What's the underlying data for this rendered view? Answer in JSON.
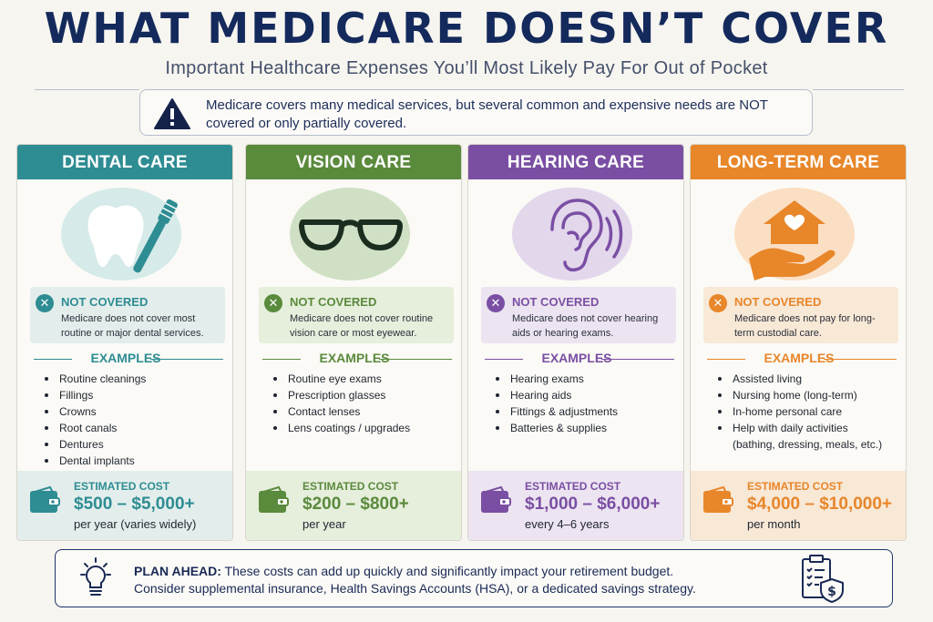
{
  "title": "WHAT MEDICARE DOESN’T COVER",
  "subtitle": "Important Healthcare Expenses You’ll Most Likely Pay For Out of Pocket",
  "callout": {
    "icon": "warning-triangle-icon",
    "text": "Medicare covers many medical services, but several common and expensive needs are NOT covered or only partially covered."
  },
  "cards": [
    {
      "title": "DENTAL CARE",
      "color": "#2e8c93",
      "tint": "#e3eeec",
      "icon": "tooth-toothbrush-icon",
      "status": "NOT COVERED",
      "description": "Medicare does not cover most routine or major dental services.",
      "examples_label": "EXAMPLES",
      "examples": [
        "Routine cleanings",
        "Fillings",
        "Crowns",
        "Root canals",
        "Dentures",
        "Dental implants"
      ],
      "cost_label": "ESTIMATED COST",
      "cost_amount": "$500 – $5,000+",
      "cost_period": "per year (varies widely)"
    },
    {
      "title": "VISION CARE",
      "color": "#5a8a3c",
      "tint": "#e6eedc",
      "icon": "eyeglasses-icon",
      "status": "NOT COVERED",
      "description": "Medicare does not cover routine vision care or most eyewear.",
      "examples_label": "EXAMPLES",
      "examples": [
        "Routine eye exams",
        "Prescription glasses",
        "Contact lenses",
        "Lens coatings / upgrades"
      ],
      "cost_label": "ESTIMATED COST",
      "cost_amount": "$200 – $800+",
      "cost_period": "per year"
    },
    {
      "title": "HEARING CARE",
      "color": "#7a4fa3",
      "tint": "#ece4f1",
      "icon": "ear-sound-icon",
      "status": "NOT COVERED",
      "description": "Medicare does not cover hearing aids or hearing exams.",
      "examples_label": "EXAMPLES",
      "examples": [
        "Hearing exams",
        "Hearing aids",
        "Fittings & adjustments",
        "Batteries & supplies"
      ],
      "cost_label": "ESTIMATED COST",
      "cost_amount": "$1,000 – $6,000+",
      "cost_period": "every 4–6 years"
    },
    {
      "title": "LONG-TERM CARE",
      "color": "#e8862a",
      "tint": "#f8e8d6",
      "icon": "house-hand-heart-icon",
      "status": "NOT COVERED",
      "description": "Medicare does not pay for long-term custodial care.",
      "examples_label": "EXAMPLES",
      "examples": [
        "Assisted living",
        "Nursing home (long-term)",
        "In-home personal care",
        "Help with daily activities (bathing, dressing, meals, etc.)"
      ],
      "cost_label": "ESTIMATED COST",
      "cost_amount": "$4,000 – $10,000+",
      "cost_period": "per month"
    }
  ],
  "plan": {
    "icon": "lightbulb-icon",
    "label": "PLAN AHEAD:",
    "line1": " These costs can add up quickly and significantly impact your retirement budget.",
    "line2": "Consider supplemental insurance, Health Savings Accounts (HSA), or a dedicated savings strategy.",
    "right_icon": "checklist-shield-dollar-icon"
  }
}
